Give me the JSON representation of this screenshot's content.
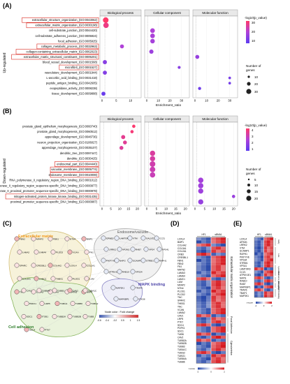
{
  "panels": {
    "A": "(A)",
    "B": "(B)",
    "C": "(C)",
    "D": "(D)",
    "E": "(E)"
  },
  "facets": [
    "Biological process",
    "Cellular component",
    "Molecular function"
  ],
  "x_axis_label": "Enrichment_ratio",
  "side_labels": {
    "up": "Up-regulated",
    "down": "Down-regulated"
  },
  "colors": {
    "low": "#5b3cf0",
    "mid": "#b042d8",
    "high": "#ff3a6a",
    "box_red": "#d9251c",
    "heat_red": "#d7181e",
    "heat_blue": "#2546a8"
  },
  "legend": {
    "color_title": "-log10(p_value)",
    "size_title_line1": "Number of",
    "size_title_line2": "genes",
    "A_color_ticks": [
      "30",
      "20",
      "10"
    ],
    "A_size_ticks": [
      "10",
      "20",
      "30"
    ],
    "B_color_ticks": [
      "4",
      "3",
      "2",
      "1"
    ],
    "B_size_ticks": [
      "5",
      "10",
      "15",
      "20"
    ]
  },
  "chart_data": [
    {
      "type": "scatter",
      "panel": "A",
      "xlabel": "Enrichment_ratio",
      "facets": {
        "Biological process": {
          "xlim": [
            0,
            13
          ],
          "xticks": [
            "0",
            "5",
            "10"
          ]
        },
        "Cellular component": {
          "xlim": [
            0,
            35
          ],
          "xticks": [
            "0",
            "10",
            "20",
            "30"
          ]
        },
        "Molecular function": {
          "xlim": [
            0,
            35
          ],
          "xticks": [
            "0",
            "10",
            "20",
            "30"
          ]
        }
      },
      "terms": [
        "extracellular_structure_organization_(GO:0043062)",
        "extracellular_matrix_organization_(GO:0030198)",
        "cell-substrate_junction_(GO:0044420)",
        "cell-substrate_adherens_junction_(GO:0005924)",
        "focal_adhesion_(GO:0005925)",
        "collagen_metabolic_process_(GO:0032963)",
        "collagen-containing_extracellular_matrix_(GO:0062023)",
        "extracellular_matrix_structural_constituent_(GO:0005201)",
        "blood_vessel_development_(GO:0001568)",
        "microfibril_(GO:0001527)",
        "vasculature_development_(GO:0001944)",
        "L-ascorbic_acid_binding_(GO:0031418)",
        "peptide_antigen_binding_(GO:0042605)",
        "exopeptidase_activity_(GO:0008238)",
        "tissue_development_(GO:0009888)"
      ],
      "boxed_terms": [
        0,
        1,
        5,
        6,
        7,
        9
      ],
      "points": [
        {
          "term": 0,
          "facet": "Biological process",
          "x": 1.3,
          "p": 34,
          "n": 37
        },
        {
          "term": 1,
          "facet": "Biological process",
          "x": 1.4,
          "p": 30,
          "n": 34
        },
        {
          "term": 2,
          "facet": "Cellular component",
          "x": 5,
          "p": 17,
          "n": 23
        },
        {
          "term": 3,
          "facet": "Cellular component",
          "x": 5,
          "p": 16,
          "n": 22
        },
        {
          "term": 4,
          "facet": "Cellular component",
          "x": 5,
          "p": 15,
          "n": 21
        },
        {
          "term": 5,
          "facet": "Biological process",
          "x": 7,
          "p": 17,
          "n": 14
        },
        {
          "term": 6,
          "facet": "Cellular component",
          "x": 4,
          "p": 13,
          "n": 17
        },
        {
          "term": 7,
          "facet": "Molecular function",
          "x": 2,
          "p": 12,
          "n": 14
        },
        {
          "term": 8,
          "facet": "Biological process",
          "x": 1,
          "p": 9,
          "n": 16
        },
        {
          "term": 9,
          "facet": "Cellular component",
          "x": 28,
          "p": 9,
          "n": 5
        },
        {
          "term": 10,
          "facet": "Biological process",
          "x": 1,
          "p": 8,
          "n": 15
        },
        {
          "term": 11,
          "facet": "Molecular function",
          "x": 30,
          "p": 6,
          "n": 3
        },
        {
          "term": 12,
          "facet": "Molecular function",
          "x": 30,
          "p": 5,
          "n": 3
        },
        {
          "term": 13,
          "facet": "Molecular function",
          "x": 4,
          "p": 4,
          "n": 6
        },
        {
          "term": 14,
          "facet": "Biological process",
          "x": 0.5,
          "p": 3,
          "n": 15
        }
      ]
    },
    {
      "type": "scatter",
      "panel": "B",
      "xlabel": "Enrichment_ratio",
      "facets": {
        "Biological process": {
          "xlim": [
            0,
            21
          ],
          "xticks": [
            "0",
            "5",
            "10",
            "15",
            "20"
          ]
        },
        "Cellular component": {
          "xlim": [
            0,
            21
          ],
          "xticks": [
            "0",
            "5",
            "10",
            "15",
            "20"
          ]
        },
        "Molecular function": {
          "xlim": [
            0,
            21
          ],
          "xticks": [
            "0",
            "5",
            "10",
            "15",
            "20"
          ]
        }
      },
      "terms": [
        "prostate_gland_epithelium_morphogenesis_(GO:0060740)",
        "prostate_gland_morphogenesis_(GO:0060512)",
        "appendage_development_(GO:0048736)",
        "neuron_projection_organization_(GO:0106027)",
        "appendage_morphogenesis_(GO:0035107)",
        "dendritic_tree_(GO:0097447)",
        "dendrite_(GO:0030425)",
        "endosomal_part_(GO:0044440)",
        "vacuolar_membrane_(GO:0005774)",
        "endosome_membrane_(GO:0010008)",
        "RNA_polymerase_II_regulatory_region_DNA_binding_(GO:0001012)",
        "RNA_polymerase_II_regulatory_region_sequence-specific_DNA_binding_(GO:0000977)",
        "RNA_polymerase_II_proximal_promoter_sequence-specific_DNA_binding_(GO:0000978)",
        "mitogen-activated_protein_kinase_kinase_binding_(GO:0031435)",
        "proximal_promoter_sequence-specific_DNA_binding_(GO:0000987)"
      ],
      "boxed_terms": [
        7,
        8,
        9,
        13
      ],
      "points": [
        {
          "term": 0,
          "facet": "Biological process",
          "x": 18,
          "p": 4.5,
          "n": 4
        },
        {
          "term": 1,
          "facet": "Biological process",
          "x": 17,
          "p": 4.3,
          "n": 4
        },
        {
          "term": 2,
          "facet": "Biological process",
          "x": 12,
          "p": 3.8,
          "n": 8
        },
        {
          "term": 3,
          "facet": "Biological process",
          "x": 13,
          "p": 3.7,
          "n": 7
        },
        {
          "term": 4,
          "facet": "Biological process",
          "x": 11,
          "p": 3.6,
          "n": 7
        },
        {
          "term": 5,
          "facet": "Cellular component",
          "x": 3,
          "p": 3.5,
          "n": 17
        },
        {
          "term": 6,
          "facet": "Cellular component",
          "x": 3,
          "p": 3.4,
          "n": 17
        },
        {
          "term": 7,
          "facet": "Cellular component",
          "x": 3,
          "p": 3.2,
          "n": 20
        },
        {
          "term": 8,
          "facet": "Cellular component",
          "x": 3,
          "p": 3.1,
          "n": 19
        },
        {
          "term": 9,
          "facet": "Cellular component",
          "x": 3,
          "p": 3.0,
          "n": 18
        },
        {
          "term": 10,
          "facet": "Molecular function",
          "x": 3,
          "p": 2.0,
          "n": 18
        },
        {
          "term": 11,
          "facet": "Molecular function",
          "x": 3,
          "p": 1.9,
          "n": 17
        },
        {
          "term": 12,
          "facet": "Molecular function",
          "x": 3,
          "p": 1.8,
          "n": 16
        },
        {
          "term": 13,
          "facet": "Molecular function",
          "x": 20,
          "p": 1.7,
          "n": 4
        },
        {
          "term": 14,
          "facet": "Molecular function",
          "x": 3,
          "p": 1.6,
          "n": 16
        }
      ]
    },
    {
      "type": "heatmap",
      "panel": "D",
      "columns": [
        "HF1",
        "HF2",
        "HF3",
        "sBMA1",
        "sBMA2",
        "sBMA3"
      ],
      "column_groups": [
        "HF1",
        "sBMA1"
      ],
      "genes": [
        "LOXL4",
        "BMP1",
        "COL4A2",
        "COL3A1",
        "COL2A1",
        "CRB3",
        "CRESBL1",
        "FBN1",
        "FBN2",
        "FN1",
        "MATN2",
        "LAMA3",
        "LAMA4",
        "LAMC1",
        "LUM",
        "MFAP2",
        "NTN4",
        "PLOD1",
        "PLOD2",
        "TNC",
        "SPARC",
        "THBS1",
        "TNC",
        "VCAN",
        "LAMA2",
        "CAV1",
        "LRP5",
        "PTK7",
        "SDC4",
        "PDFK1",
        "SDC1",
        "TUBB",
        "CAV2",
        "TUBB2A",
        "TUBB2B",
        "TUBB3",
        "TUBA1C",
        "TUBG2",
        "TUBG1",
        "TUBB4A",
        "TUBB6"
      ],
      "groups": [
        "Extracellular matrix organization",
        "Focal Adhesion",
        "Cytoskeleton"
      ],
      "scale_ticks": [
        "-2",
        "0",
        "2"
      ],
      "scale_label": "z-score"
    },
    {
      "type": "heatmap",
      "panel": "E",
      "columns": [
        "HF1",
        "HF2",
        "HF3",
        "sBMA1",
        "sBMA2",
        "sBMA3"
      ],
      "column_groups": [
        "HF1",
        "sBMA1"
      ],
      "genes": [
        "LOXL4",
        "AP2M1",
        "LRRK2",
        "VTM",
        "SCAMP1",
        "RAPH1",
        "PIKFYVE",
        "VPS34",
        "STRBI1",
        "VPS41",
        "LAMTOR3",
        "CCZ1",
        "ATP6V1E1",
        "NAPG",
        "RAB10",
        "RAB7",
        "MAPKBP1",
        "TRAF6",
        "TBAP1",
        "MAP3K1"
      ],
      "groups": [
        "Early",
        "Late",
        "Lysosome",
        "Endosome pathway",
        "Recycling",
        "MAPK binding"
      ],
      "scale_ticks": [
        "-2",
        "0",
        "2"
      ],
      "scale_label": "z-score"
    }
  ],
  "network": {
    "groups": [
      "Extracellular matrix",
      "Endosome/vacuole",
      "MAPK binding",
      "Cell adhesion"
    ],
    "node_color_label": "Node color : Fold change",
    "node_color_ticks": [
      "-0.6",
      "-0.4",
      "-0.2",
      "0.5",
      "1",
      "1.5"
    ],
    "ecm_nodes": [
      "FBN2",
      "MFAP2",
      "FBN1",
      "NTN4",
      "BMP1",
      "LAMA2",
      "LAMA4",
      "PLOD2",
      "VCAN",
      "FN1",
      "SPARC",
      "CRESBL1",
      "COL4A2",
      "LOXL4",
      "COL2A1",
      "COL3A1",
      "LAMC1",
      "THBS1",
      "PLOD1",
      "LUM",
      "TNC",
      "LAMA3",
      "PLAU",
      "MATN2",
      "NRP1"
    ],
    "adhesion_nodes": [
      "CAV1",
      "TUBB4A",
      "TUBB3",
      "CAV2",
      "TUBA1C",
      "PDFK1",
      "LRP5",
      "TUBG1",
      "TUBB6",
      "TUBG2",
      "SDC1",
      "ITGB1",
      "TUBB2A",
      "TUBB2B",
      "TUBB",
      "SDC4",
      "PTK7"
    ],
    "endosome_nodes": [
      "CPNE3",
      "LAMTOR3",
      "VTM",
      "GALNT2",
      "CCZ1",
      "LRRK2",
      "AP2M1",
      "RAB7",
      "VPS4",
      "VPS41",
      "PIKFYVE",
      "NAPG",
      "SCAMP1",
      "STRBI1",
      "RAPH1",
      "ATP6V1E1",
      "RAB10",
      "VPS34"
    ],
    "mapk_nodes": [
      "MAP3K1",
      "TRAF6",
      "MAPKBP1",
      "STK38"
    ]
  }
}
